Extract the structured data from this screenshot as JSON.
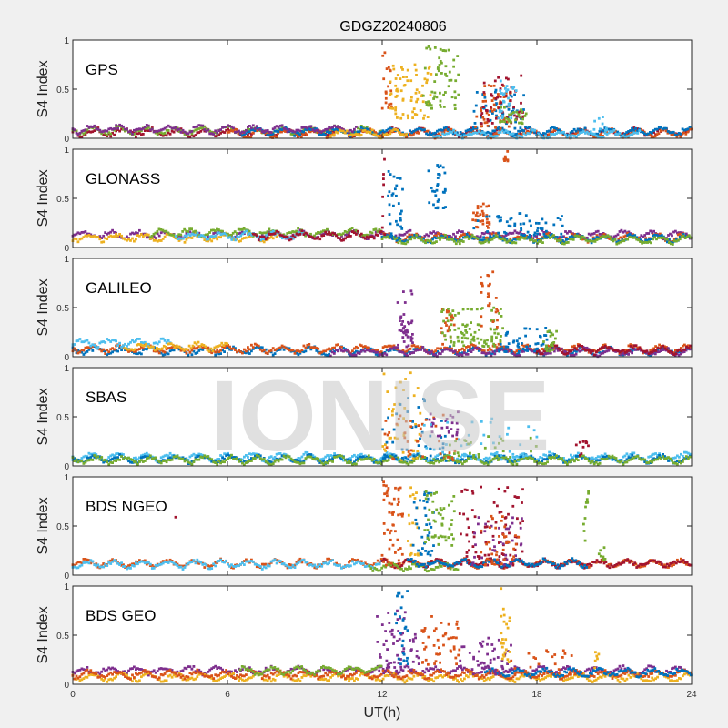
{
  "chart_data": {
    "type": "scatter",
    "title": "GDGZ20240806",
    "xlabel": "UT(h)",
    "ylabel": "S4 Index",
    "xlim": [
      0,
      24
    ],
    "ylim": [
      0,
      1
    ],
    "xticks": [
      "0",
      "6",
      "12",
      "18",
      "24"
    ],
    "yticks": [
      "0",
      "0.5",
      "1"
    ],
    "watermark": "IONISE",
    "colors": {
      "blue": "#0072BD",
      "orange": "#D95319",
      "yellow": "#EDB120",
      "purple": "#7E2F8E",
      "green": "#77AC30",
      "lightblue": "#4DBEEE",
      "red": "#A2142F"
    },
    "panels": [
      {
        "label": "GPS",
        "baselines": [
          {
            "color": "red",
            "x": [
              0,
              24
            ],
            "level": 0.06
          },
          {
            "color": "green",
            "x": [
              0,
              12
            ],
            "level": 0.08
          },
          {
            "color": "orange",
            "x": [
              6,
              24
            ],
            "level": 0.05
          },
          {
            "color": "blue",
            "x": [
              6.5,
              24
            ],
            "level": 0.07
          },
          {
            "color": "purple",
            "x": [
              0,
              11
            ],
            "level": 0.09
          },
          {
            "color": "lightblue",
            "x": [
              14,
              22
            ],
            "level": 0.04
          },
          {
            "color": "yellow",
            "x": [
              10,
              13
            ],
            "level": 0.05
          }
        ],
        "bursts": [
          {
            "color": "orange",
            "x": [
              12,
              12.4
            ],
            "y": [
              0.3,
              0.95
            ],
            "n": 20
          },
          {
            "color": "yellow",
            "x": [
              12.3,
              13.9
            ],
            "y": [
              0.2,
              0.75
            ],
            "n": 70
          },
          {
            "color": "green",
            "x": [
              13.6,
              15
            ],
            "y": [
              0.3,
              0.95
            ],
            "n": 60
          },
          {
            "color": "blue",
            "x": [
              15.5,
              17.5
            ],
            "y": [
              0.1,
              0.5
            ],
            "n": 50
          },
          {
            "color": "orange",
            "x": [
              15.6,
              17
            ],
            "y": [
              0.1,
              0.55
            ],
            "n": 50
          },
          {
            "color": "red",
            "x": [
              15.8,
              17.5
            ],
            "y": [
              0.15,
              0.65
            ],
            "n": 50
          },
          {
            "color": "lightblue",
            "x": [
              16.5,
              17.2
            ],
            "y": [
              0.2,
              0.6
            ],
            "n": 30
          },
          {
            "color": "green",
            "x": [
              16.5,
              17.6
            ],
            "y": [
              0.15,
              0.35
            ],
            "n": 25
          },
          {
            "color": "lightblue",
            "x": [
              20.2,
              20.7
            ],
            "y": [
              0.08,
              0.25
            ],
            "n": 10
          }
        ]
      },
      {
        "label": "GLONASS",
        "baselines": [
          {
            "color": "purple",
            "x": [
              0,
              24
            ],
            "level": 0.13
          },
          {
            "color": "yellow",
            "x": [
              0,
              8
            ],
            "level": 0.1
          },
          {
            "color": "green",
            "x": [
              3,
              12
            ],
            "level": 0.15
          },
          {
            "color": "lightblue",
            "x": [
              4,
              9
            ],
            "level": 0.12
          },
          {
            "color": "red",
            "x": [
              7,
              12
            ],
            "level": 0.12
          },
          {
            "color": "orange",
            "x": [
              12,
              24
            ],
            "level": 0.1
          },
          {
            "color": "blue",
            "x": [
              12,
              24
            ],
            "level": 0.09
          },
          {
            "color": "green",
            "x": [
              12,
              24
            ],
            "level": 0.08
          }
        ],
        "bursts": [
          {
            "color": "red",
            "x": [
              12,
              12.1
            ],
            "y": [
              0.1,
              0.9
            ],
            "n": 8
          },
          {
            "color": "blue",
            "x": [
              12.2,
              12.8
            ],
            "y": [
              0.1,
              0.8
            ],
            "n": 30
          },
          {
            "color": "blue",
            "x": [
              13.8,
              14.5
            ],
            "y": [
              0.4,
              0.85
            ],
            "n": 30
          },
          {
            "color": "orange",
            "x": [
              15.5,
              16.2
            ],
            "y": [
              0.2,
              0.45
            ],
            "n": 30
          },
          {
            "color": "orange",
            "x": [
              16.7,
              16.9
            ],
            "y": [
              0.88,
              1
            ],
            "n": 8
          },
          {
            "color": "blue",
            "x": [
              15.5,
              19
            ],
            "y": [
              0.1,
              0.35
            ],
            "n": 60
          }
        ]
      },
      {
        "label": "GALILEO",
        "baselines": [
          {
            "color": "blue",
            "x": [
              0,
              24
            ],
            "level": 0.06
          },
          {
            "color": "orange",
            "x": [
              0,
              24
            ],
            "level": 0.08
          },
          {
            "color": "lightblue",
            "x": [
              0,
              3.8
            ],
            "level": 0.14
          },
          {
            "color": "yellow",
            "x": [
              2,
              6
            ],
            "level": 0.1
          },
          {
            "color": "purple",
            "x": [
              10,
              24
            ],
            "level": 0.05
          },
          {
            "color": "red",
            "x": [
              18,
              24
            ],
            "level": 0.07
          }
        ],
        "bursts": [
          {
            "color": "purple",
            "x": [
              12.6,
              13.2
            ],
            "y": [
              0.1,
              0.7
            ],
            "n": 40
          },
          {
            "color": "orange",
            "x": [
              14.3,
              14.8
            ],
            "y": [
              0.2,
              0.5
            ],
            "n": 20
          },
          {
            "color": "green",
            "x": [
              14.3,
              16.7
            ],
            "y": [
              0.1,
              0.5
            ],
            "n": 90
          },
          {
            "color": "orange",
            "x": [
              15.8,
              16.5
            ],
            "y": [
              0.3,
              0.9
            ],
            "n": 25
          },
          {
            "color": "blue",
            "x": [
              16.5,
              18.5
            ],
            "y": [
              0.05,
              0.3
            ],
            "n": 50
          },
          {
            "color": "green",
            "x": [
              18.2,
              18.8
            ],
            "y": [
              0.05,
              0.3
            ],
            "n": 20
          }
        ]
      },
      {
        "label": "SBAS",
        "baselines": [
          {
            "color": "lightblue",
            "x": [
              0,
              24
            ],
            "level": 0.09
          },
          {
            "color": "blue",
            "x": [
              0,
              24
            ],
            "level": 0.07
          },
          {
            "color": "green",
            "x": [
              0,
              24
            ],
            "level": 0.06
          }
        ],
        "bursts": [
          {
            "color": "yellow",
            "x": [
              12,
              13.5
            ],
            "y": [
              0.05,
              0.95
            ],
            "n": 40
          },
          {
            "color": "blue",
            "x": [
              12,
              14.5
            ],
            "y": [
              0.05,
              0.7
            ],
            "n": 40
          },
          {
            "color": "orange",
            "x": [
              12,
              15
            ],
            "y": [
              0.05,
              0.55
            ],
            "n": 40
          },
          {
            "color": "purple",
            "x": [
              13.8,
              15
            ],
            "y": [
              0.3,
              0.55
            ],
            "n": 25
          },
          {
            "color": "lightblue",
            "x": [
              13.5,
              18
            ],
            "y": [
              0.05,
              0.5
            ],
            "n": 40
          },
          {
            "color": "green",
            "x": [
              14,
              18
            ],
            "y": [
              0.05,
              0.3
            ],
            "n": 30
          },
          {
            "color": "red",
            "x": [
              19.5,
              20
            ],
            "y": [
              0.1,
              0.3
            ],
            "n": 10
          }
        ]
      },
      {
        "label": "BDS NGEO",
        "baselines": [
          {
            "color": "orange",
            "x": [
              0,
              24
            ],
            "level": 0.12
          },
          {
            "color": "lightblue",
            "x": [
              0,
              12
            ],
            "level": 0.11
          },
          {
            "color": "red",
            "x": [
              12,
              24
            ],
            "level": 0.12
          },
          {
            "color": "green",
            "x": [
              11.5,
              15
            ],
            "level": 0.08
          },
          {
            "color": "blue",
            "x": [
              13,
              20
            ],
            "level": 0.12
          }
        ],
        "bursts": [
          {
            "color": "red",
            "x": [
              3.9,
              4.0
            ],
            "y": [
              0.55,
              0.6
            ],
            "n": 1
          },
          {
            "color": "orange",
            "x": [
              12,
              12.8
            ],
            "y": [
              0.1,
              0.95
            ],
            "n": 50
          },
          {
            "color": "yellow",
            "x": [
              13,
              13.4
            ],
            "y": [
              0.2,
              0.9
            ],
            "n": 20
          },
          {
            "color": "blue",
            "x": [
              13.2,
              14
            ],
            "y": [
              0.2,
              0.85
            ],
            "n": 35
          },
          {
            "color": "green",
            "x": [
              13.6,
              14.8
            ],
            "y": [
              0.3,
              0.85
            ],
            "n": 50
          },
          {
            "color": "red",
            "x": [
              15,
              17.5
            ],
            "y": [
              0.1,
              0.9
            ],
            "n": 80
          },
          {
            "color": "purple",
            "x": [
              15.5,
              17.5
            ],
            "y": [
              0.1,
              0.6
            ],
            "n": 40
          },
          {
            "color": "orange",
            "x": [
              15.8,
              17.3
            ],
            "y": [
              0.1,
              0.6
            ],
            "n": 40
          },
          {
            "color": "green",
            "x": [
              19.8,
              20
            ],
            "y": [
              0.3,
              0.95
            ],
            "n": 10
          },
          {
            "color": "green",
            "x": [
              20.4,
              20.7
            ],
            "y": [
              0.15,
              0.3
            ],
            "n": 10
          }
        ]
      },
      {
        "label": "BDS GEO",
        "baselines": [
          {
            "color": "purple",
            "x": [
              0,
              24
            ],
            "level": 0.14
          },
          {
            "color": "yellow",
            "x": [
              0,
              24
            ],
            "level": 0.07
          },
          {
            "color": "orange",
            "x": [
              0,
              24
            ],
            "level": 0.1
          },
          {
            "color": "green",
            "x": [
              6.5,
              12
            ],
            "level": 0.14
          },
          {
            "color": "blue",
            "x": [
              16,
              24
            ],
            "level": 0.12
          }
        ],
        "bursts": [
          {
            "color": "purple",
            "x": [
              11.8,
              13.5
            ],
            "y": [
              0.1,
              0.75
            ],
            "n": 60
          },
          {
            "color": "blue",
            "x": [
              12.5,
              13
            ],
            "y": [
              0.2,
              0.95
            ],
            "n": 25
          },
          {
            "color": "orange",
            "x": [
              13.5,
              15
            ],
            "y": [
              0.2,
              0.7
            ],
            "n": 45
          },
          {
            "color": "purple",
            "x": [
              15,
              17
            ],
            "y": [
              0.1,
              0.5
            ],
            "n": 50
          },
          {
            "color": "yellow",
            "x": [
              16.6,
              17
            ],
            "y": [
              0.2,
              1
            ],
            "n": 25
          },
          {
            "color": "orange",
            "x": [
              17,
              19.5
            ],
            "y": [
              0.1,
              0.35
            ],
            "n": 25
          },
          {
            "color": "yellow",
            "x": [
              20.2,
              20.4
            ],
            "y": [
              0.15,
              0.35
            ],
            "n": 6
          }
        ]
      }
    ]
  }
}
